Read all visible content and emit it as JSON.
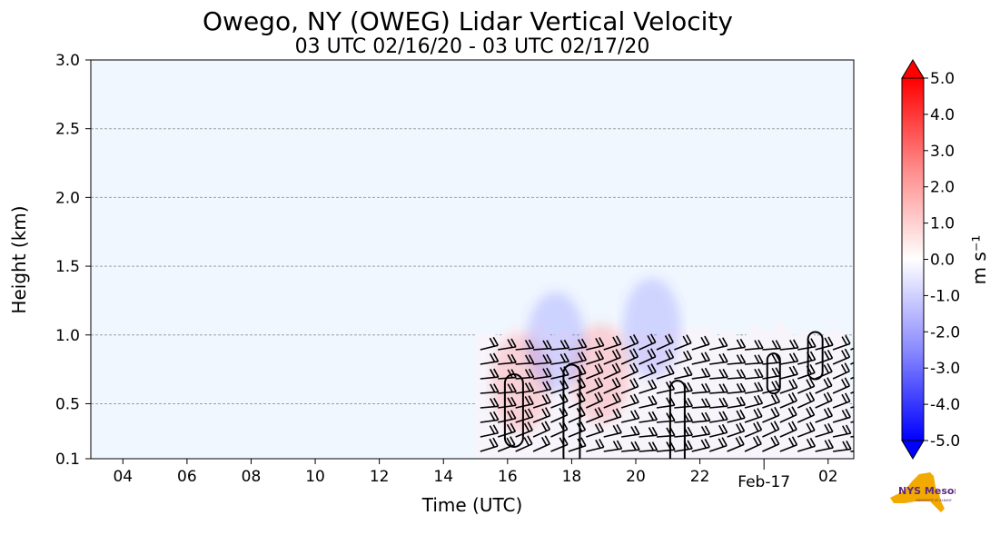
{
  "chart_data": {
    "type": "heatmap",
    "title": "Owego, NY (OWEG) Lidar Vertical Velocity",
    "subtitle": "03 UTC 02/16/20 - 03 UTC 02/17/20",
    "xlabel": "Time (UTC)",
    "ylabel": "Height (km)",
    "x_range_hours": [
      3,
      26.8
    ],
    "ylim": [
      0.1,
      3.0
    ],
    "x_ticks": [
      {
        "hour": 4,
        "label": "04"
      },
      {
        "hour": 6,
        "label": "06"
      },
      {
        "hour": 8,
        "label": "08"
      },
      {
        "hour": 10,
        "label": "10"
      },
      {
        "hour": 12,
        "label": "12"
      },
      {
        "hour": 14,
        "label": "14"
      },
      {
        "hour": 16,
        "label": "16"
      },
      {
        "hour": 18,
        "label": "18"
      },
      {
        "hour": 20,
        "label": "20"
      },
      {
        "hour": 22,
        "label": "22"
      },
      {
        "hour": 26,
        "label": "02"
      }
    ],
    "date_tick": {
      "hour": 24,
      "label": "Feb-17"
    },
    "y_ticks": [
      {
        "value": 0.1,
        "label": "0.1"
      },
      {
        "value": 0.5,
        "label": "0.5"
      },
      {
        "value": 1.0,
        "label": "1.0"
      },
      {
        "value": 1.5,
        "label": "1.5"
      },
      {
        "value": 2.0,
        "label": "2.0"
      },
      {
        "value": 2.5,
        "label": "2.5"
      },
      {
        "value": 3.0,
        "label": "3.0"
      }
    ],
    "grid": "horizontal dashed",
    "background_value": 0.0,
    "data_extent": {
      "start_hour": 15.0,
      "end_hour": 26.8,
      "top_km": 1.1
    },
    "velocity_patches": [
      {
        "hour": 16.4,
        "height": 0.65,
        "value": 0.5
      },
      {
        "hour": 18.9,
        "height": 0.72,
        "value": 0.6
      },
      {
        "hour": 17.5,
        "height": 0.95,
        "value": -0.6
      },
      {
        "hour": 20.5,
        "height": 1.05,
        "value": -0.5
      }
    ],
    "colorbar": {
      "label": "m s⁻¹",
      "min": -5.0,
      "max": 5.0,
      "ticks": [
        "5.0",
        "4.0",
        "3.0",
        "2.0",
        "1.0",
        "0.0",
        "-1.0",
        "-2.0",
        "-3.0",
        "-4.0",
        "-5.0"
      ],
      "colors": {
        "neg": "#0000ff",
        "mid": "#ffffff",
        "pos": "#ff0000"
      }
    },
    "background_color": "#f0f7ff"
  },
  "logo": {
    "text": "NYS Mesonet",
    "subtext": "UNIVERSITY AT ALBANY",
    "color": "#f2a900",
    "text_color": "#5a2a82"
  }
}
